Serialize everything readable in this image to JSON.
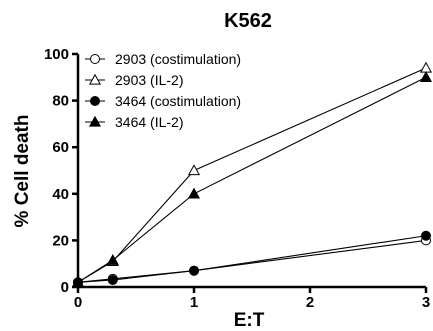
{
  "chart_data": {
    "type": "line",
    "title": "K562",
    "xlabel": "E:T",
    "ylabel": "% Cell death",
    "xlim": [
      0,
      3
    ],
    "ylim": [
      0,
      100
    ],
    "xticks": [
      0,
      1,
      2,
      3
    ],
    "yticks": [
      0,
      20,
      40,
      60,
      80,
      100
    ],
    "grid": false,
    "legend_position": "top-left",
    "series": [
      {
        "name": "2903 (costimulation)",
        "marker": "circle-open",
        "x": [
          0,
          0.3,
          1,
          3
        ],
        "y": [
          2,
          3.5,
          7,
          20
        ]
      },
      {
        "name": "2903 (IL-2)",
        "marker": "triangle-open",
        "x": [
          0,
          0.3,
          1,
          3
        ],
        "y": [
          2,
          11,
          50,
          94
        ]
      },
      {
        "name": "3464 (costimulation)",
        "marker": "circle-filled",
        "x": [
          0,
          0.3,
          1,
          3
        ],
        "y": [
          2,
          3,
          7,
          22
        ]
      },
      {
        "name": "3464 (IL-2)",
        "marker": "triangle-filled",
        "x": [
          0,
          0.3,
          1,
          3
        ],
        "y": [
          2,
          11.5,
          40,
          90
        ]
      }
    ]
  }
}
